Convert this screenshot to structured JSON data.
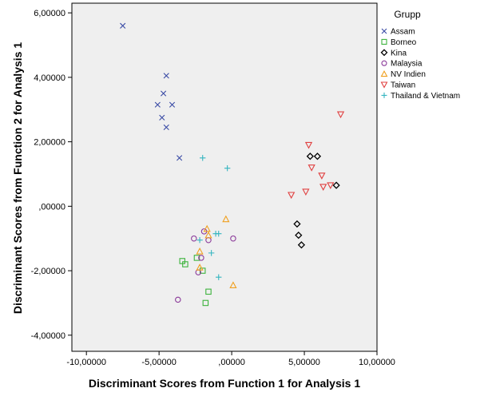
{
  "chart_data": {
    "type": "scatter",
    "xlabel": "Discriminant Scores from Function 1 for Analysis 1",
    "ylabel": "Discriminant Scores from Function 2 for Analysis 1",
    "xlim": [
      -11,
      10
    ],
    "ylim": [
      -4.5,
      6.3
    ],
    "xticks": [
      -10,
      -5,
      0,
      5,
      10
    ],
    "xtick_labels": [
      "-10,00000",
      "-5,00000",
      ",00000",
      "5,00000",
      "10,00000"
    ],
    "yticks": [
      -4,
      -2,
      0,
      2,
      4,
      6
    ],
    "ytick_labels": [
      "-4,00000",
      "-2,00000",
      ",00000",
      "2,00000",
      "4,00000",
      "6,00000"
    ],
    "grid": false,
    "background": "#efefef",
    "legend": {
      "title": "Grupp",
      "position": "right-top"
    },
    "series": [
      {
        "name": "Assam",
        "marker": "x",
        "color": "#3a4ba5",
        "points": [
          [
            -7.5,
            5.6
          ],
          [
            -4.5,
            4.05
          ],
          [
            -4.7,
            3.5
          ],
          [
            -5.1,
            3.15
          ],
          [
            -4.1,
            3.15
          ],
          [
            -4.8,
            2.75
          ],
          [
            -4.5,
            2.45
          ],
          [
            -3.6,
            1.5
          ]
        ]
      },
      {
        "name": "Borneo",
        "marker": "square",
        "color": "#3db33d",
        "points": [
          [
            -3.4,
            -1.7
          ],
          [
            -3.2,
            -1.8
          ],
          [
            -2.4,
            -1.6
          ],
          [
            -2.0,
            -2.0
          ],
          [
            -1.6,
            -2.65
          ],
          [
            -1.8,
            -3.0
          ]
        ]
      },
      {
        "name": "Kina",
        "marker": "diamond",
        "color": "#000000",
        "points": [
          [
            5.4,
            1.55
          ],
          [
            5.9,
            1.55
          ],
          [
            7.2,
            0.65
          ],
          [
            4.5,
            -0.55
          ],
          [
            4.6,
            -0.9
          ],
          [
            4.8,
            -1.2
          ]
        ]
      },
      {
        "name": "Malaysia",
        "marker": "circle",
        "color": "#8b3a9a",
        "points": [
          [
            -2.6,
            -1.0
          ],
          [
            -1.9,
            -0.78
          ],
          [
            -1.6,
            -1.05
          ],
          [
            0.1,
            -1.0
          ],
          [
            -2.1,
            -1.6
          ],
          [
            -2.3,
            -2.05
          ],
          [
            -3.7,
            -2.9
          ]
        ]
      },
      {
        "name": "NV Indien",
        "marker": "triangle-up",
        "color": "#f0a020",
        "points": [
          [
            -0.4,
            -0.4
          ],
          [
            -1.7,
            -0.7
          ],
          [
            -1.6,
            -0.9
          ],
          [
            -2.2,
            -1.4
          ],
          [
            -2.2,
            -1.9
          ],
          [
            0.1,
            -2.45
          ]
        ]
      },
      {
        "name": "Taiwan",
        "marker": "triangle-down",
        "color": "#e04040",
        "points": [
          [
            7.5,
            2.85
          ],
          [
            5.3,
            1.9
          ],
          [
            5.5,
            1.2
          ],
          [
            6.2,
            0.95
          ],
          [
            6.3,
            0.6
          ],
          [
            6.8,
            0.65
          ],
          [
            5.1,
            0.45
          ],
          [
            4.1,
            0.35
          ]
        ]
      },
      {
        "name": "Thailand & Vietnam",
        "marker": "plus",
        "color": "#35b5c0",
        "points": [
          [
            -2.0,
            1.5
          ],
          [
            -0.3,
            1.18
          ],
          [
            -2.2,
            -1.05
          ],
          [
            -1.1,
            -0.85
          ],
          [
            -0.9,
            -0.85
          ],
          [
            -1.4,
            -1.45
          ],
          [
            -0.9,
            -2.2
          ]
        ]
      }
    ]
  }
}
